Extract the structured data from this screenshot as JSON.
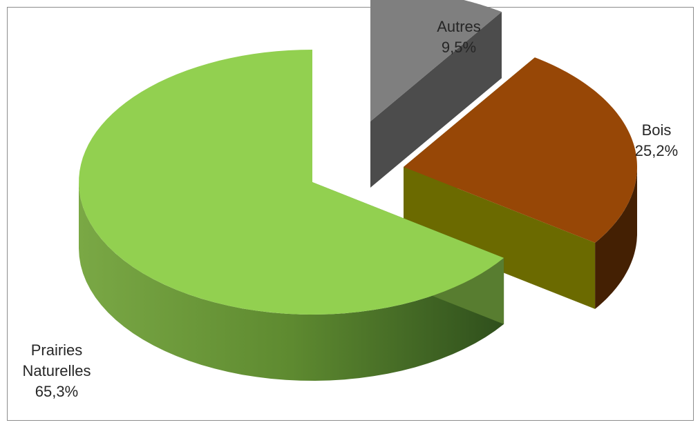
{
  "chart_data": {
    "type": "pie",
    "style": "3d-exploded",
    "title": "",
    "slices": [
      {
        "name": "Prairies Naturelles",
        "label_lines": [
          "Prairies",
          "Naturelles"
        ],
        "value": 65.3,
        "value_label": "65,3%",
        "color": "#92d050"
      },
      {
        "name": "Bois",
        "label_lines": [
          "Bois"
        ],
        "value": 25.2,
        "value_label": "25,2%",
        "color": "#974706"
      },
      {
        "name": "Autres",
        "label_lines": [
          "Autres"
        ],
        "value": 9.5,
        "value_label": "9,5%",
        "color": "#7f7f7f"
      }
    ],
    "legend": "none",
    "data_labels": "outside"
  }
}
